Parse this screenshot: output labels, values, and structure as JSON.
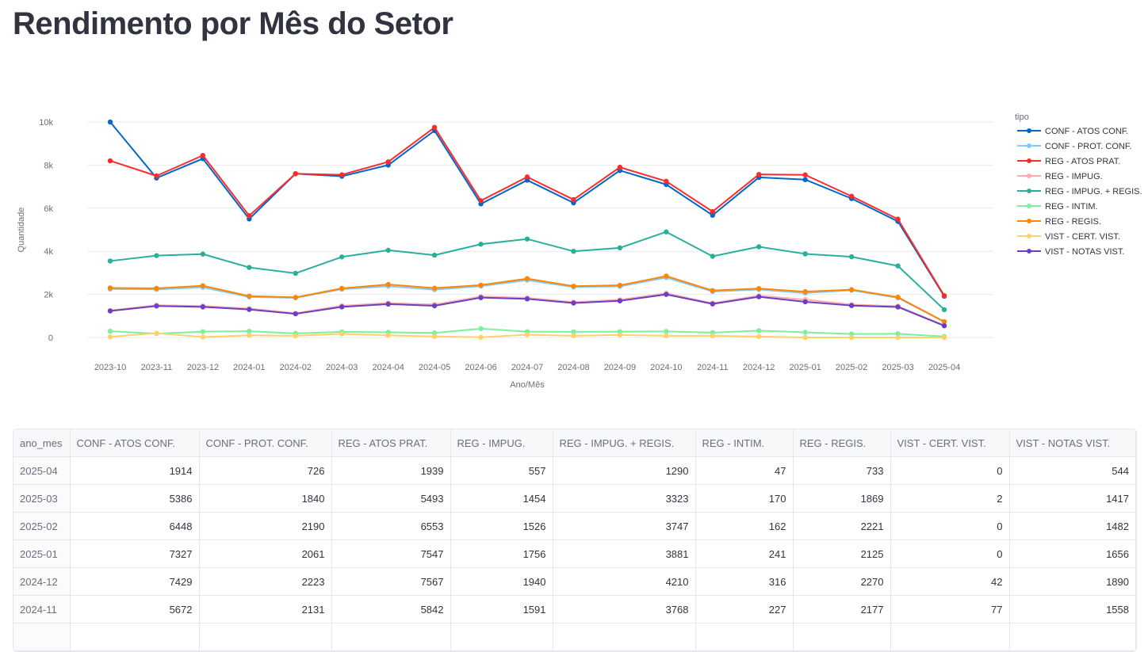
{
  "title": "Rendimento por Mês do Setor",
  "chart_data": {
    "type": "line",
    "xlabel": "Ano/Mês",
    "ylabel": "Quantidade",
    "legend_title": "tipo",
    "legend_position": "right",
    "ylim": [
      0,
      10000
    ],
    "yticks": [
      0,
      2000,
      4000,
      6000,
      8000,
      10000
    ],
    "ytick_labels": [
      "0",
      "2k",
      "4k",
      "6k",
      "8k",
      "10k"
    ],
    "x": [
      "2023-10",
      "2023-11",
      "2023-12",
      "2024-01",
      "2024-02",
      "2024-03",
      "2024-04",
      "2024-05",
      "2024-06",
      "2024-07",
      "2024-08",
      "2024-09",
      "2024-10",
      "2024-11",
      "2024-12",
      "2025-01",
      "2025-02",
      "2025-03",
      "2025-04"
    ],
    "series": [
      {
        "name": "CONF - ATOS CONF.",
        "color": "#0068c9",
        "values": [
          10000,
          7400,
          8300,
          5500,
          7600,
          7480,
          8000,
          9600,
          6200,
          7300,
          6250,
          7750,
          7100,
          5672,
          7429,
          7327,
          6448,
          5386,
          1914
        ]
      },
      {
        "name": "CONF - PROT. CONF.",
        "color": "#83c9ff",
        "values": [
          2250,
          2230,
          2330,
          1880,
          1840,
          2240,
          2380,
          2220,
          2380,
          2660,
          2340,
          2370,
          2780,
          2131,
          2223,
          2061,
          2190,
          1840,
          726
        ]
      },
      {
        "name": "REG - ATOS PRAT.",
        "color": "#ff2b2b",
        "values": [
          8200,
          7500,
          8450,
          5650,
          7600,
          7550,
          8150,
          9750,
          6350,
          7450,
          6400,
          7900,
          7250,
          5842,
          7567,
          7547,
          6553,
          5493,
          1939
        ]
      },
      {
        "name": "REG - IMPUG.",
        "color": "#ffabab",
        "values": [
          1250,
          1500,
          1460,
          1340,
          1120,
          1470,
          1600,
          1530,
          1900,
          1840,
          1640,
          1750,
          2050,
          1591,
          1940,
          1756,
          1526,
          1454,
          557
        ]
      },
      {
        "name": "REG - IMPUG. + REGIS.",
        "color": "#29b09d",
        "values": [
          3550,
          3800,
          3870,
          3250,
          2980,
          3740,
          4050,
          3820,
          4330,
          4570,
          4000,
          4160,
          4900,
          3768,
          4210,
          3881,
          3747,
          3323,
          1290
        ]
      },
      {
        "name": "REG - INTIM.",
        "color": "#7defa1",
        "values": [
          290,
          180,
          270,
          290,
          190,
          260,
          240,
          210,
          410,
          270,
          260,
          270,
          280,
          227,
          316,
          241,
          162,
          170,
          47
        ]
      },
      {
        "name": "REG - REGIS.",
        "color": "#ff8700",
        "values": [
          2300,
          2280,
          2400,
          1920,
          1860,
          2280,
          2460,
          2290,
          2430,
          2730,
          2380,
          2420,
          2850,
          2177,
          2270,
          2125,
          2221,
          1869,
          733
        ]
      },
      {
        "name": "VIST - CERT. VIST.",
        "color": "#ffd16a",
        "values": [
          30,
          200,
          20,
          100,
          80,
          170,
          100,
          50,
          10,
          130,
          80,
          120,
          80,
          77,
          42,
          0,
          0,
          2,
          0
        ]
      },
      {
        "name": "VIST - NOTAS VIST.",
        "color": "#6d3fc0",
        "values": [
          1230,
          1460,
          1420,
          1300,
          1100,
          1420,
          1550,
          1470,
          1850,
          1790,
          1600,
          1700,
          2000,
          1558,
          1890,
          1656,
          1482,
          1417,
          544
        ]
      }
    ]
  },
  "table": {
    "columns": [
      "ano_mes",
      "CONF - ATOS CONF.",
      "CONF - PROT. CONF.",
      "REG - ATOS PRAT.",
      "REG - IMPUG.",
      "REG - IMPUG. + REGIS.",
      "REG - INTIM.",
      "REG - REGIS.",
      "VIST - CERT. VIST.",
      "VIST - NOTAS VIST."
    ],
    "rows": [
      [
        "2025-04",
        "1914",
        "726",
        "1939",
        "557",
        "1290",
        "47",
        "733",
        "0",
        "544"
      ],
      [
        "2025-03",
        "5386",
        "1840",
        "5493",
        "1454",
        "3323",
        "170",
        "1869",
        "2",
        "1417"
      ],
      [
        "2025-02",
        "6448",
        "2190",
        "6553",
        "1526",
        "3747",
        "162",
        "2221",
        "0",
        "1482"
      ],
      [
        "2025-01",
        "7327",
        "2061",
        "7547",
        "1756",
        "3881",
        "241",
        "2125",
        "0",
        "1656"
      ],
      [
        "2024-12",
        "7429",
        "2223",
        "7567",
        "1940",
        "4210",
        "316",
        "2270",
        "42",
        "1890"
      ],
      [
        "2024-11",
        "5672",
        "2131",
        "5842",
        "1591",
        "3768",
        "227",
        "2177",
        "77",
        "1558"
      ],
      [
        "",
        "",
        "",
        "",
        "",
        "",
        "",
        "",
        "",
        ""
      ]
    ]
  }
}
